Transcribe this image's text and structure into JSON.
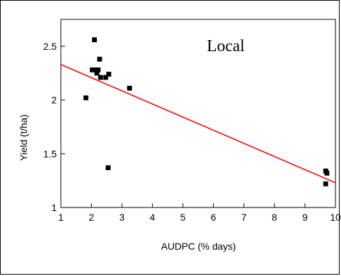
{
  "chart_data": {
    "type": "scatter",
    "title": "",
    "annotation": "Local",
    "xlabel": "AUDPC (% days)",
    "ylabel": "Yield (t/ha)",
    "xlim": [
      1,
      10
    ],
    "ylim": [
      1,
      2.75
    ],
    "xticks": [
      1,
      2,
      3,
      4,
      5,
      6,
      7,
      8,
      9,
      10
    ],
    "yticks": [
      1,
      1.5,
      2,
      2.5
    ],
    "ytick_labels": [
      "1",
      "1.5",
      "2",
      "2.5"
    ],
    "grid": false,
    "points": [
      {
        "x": 1.82,
        "y": 2.02
      },
      {
        "x": 2.03,
        "y": 2.28
      },
      {
        "x": 2.1,
        "y": 2.56
      },
      {
        "x": 2.13,
        "y": 2.28
      },
      {
        "x": 2.18,
        "y": 2.25
      },
      {
        "x": 2.22,
        "y": 2.28
      },
      {
        "x": 2.27,
        "y": 2.38
      },
      {
        "x": 2.3,
        "y": 2.21
      },
      {
        "x": 2.47,
        "y": 2.21
      },
      {
        "x": 2.57,
        "y": 2.24
      },
      {
        "x": 2.55,
        "y": 1.37
      },
      {
        "x": 3.25,
        "y": 2.11
      },
      {
        "x": 9.68,
        "y": 1.34
      },
      {
        "x": 9.72,
        "y": 1.32
      },
      {
        "x": 9.68,
        "y": 1.22
      }
    ],
    "trendline": {
      "x": [
        1,
        10
      ],
      "y": [
        2.33,
        1.23
      ],
      "color": "#ff0000"
    },
    "marker_color": "#000000"
  }
}
